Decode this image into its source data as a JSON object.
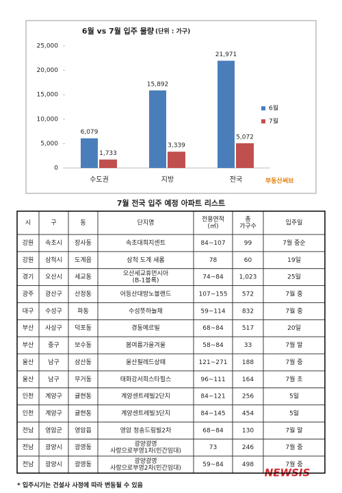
{
  "chart_data": {
    "type": "bar",
    "title": "6월 vs 7월 입주 물량",
    "subtitle": "(단위 : 가구)",
    "categories": [
      "수도권",
      "지방",
      "전국"
    ],
    "series": [
      {
        "name": "6월",
        "color": "#4a7ebb",
        "values": [
          6079,
          15892,
          21971
        ],
        "value_labels": [
          "6,079",
          "15,892",
          "21,971"
        ]
      },
      {
        "name": "7월",
        "color": "#c0504d",
        "values": [
          1733,
          3339,
          5072
        ],
        "value_labels": [
          "1,733",
          "3,339",
          "5,072"
        ]
      }
    ],
    "ylim": [
      0,
      25000
    ],
    "yticks": [
      0,
      {
        "value": 5000,
        "label": "5,000"
      },
      {
        "value": 10000,
        "label": "10,000"
      },
      {
        "value": 15000,
        "label": "15,000"
      },
      {
        "value": 20000,
        "label": "20,000"
      },
      {
        "value": 25000,
        "label": "25,000"
      }
    ],
    "grid": false,
    "legend": "right",
    "logo": "부동산써브"
  },
  "table": {
    "title": "7월 전국 입주 예정 아파트 리스트",
    "header": [
      [
        "시"
      ],
      [
        "구"
      ],
      [
        "동"
      ],
      [
        "단지명"
      ],
      [
        "전용면적",
        "(㎡)"
      ],
      [
        "총",
        "가구수"
      ],
      [
        "입주일"
      ]
    ],
    "rows": [
      [
        [
          "강원"
        ],
        [
          "속초시"
        ],
        [
          "장사동"
        ],
        [
          "속초대희지센트"
        ],
        [
          "84~107"
        ],
        [
          "99"
        ],
        [
          "7월 중순"
        ]
      ],
      [
        [
          "강원"
        ],
        [
          "삼척시"
        ],
        [
          "도계읍"
        ],
        [
          "삼척 도계 새롬"
        ],
        [
          "78"
        ],
        [
          "60"
        ],
        [
          "19일"
        ]
      ],
      [
        [
          "경기"
        ],
        [
          "오산시"
        ],
        [
          "세교동"
        ],
        [
          "오산세교휴먼시아",
          "(B-1블록)"
        ],
        [
          "74~84"
        ],
        [
          "1,023"
        ],
        [
          "25일"
        ]
      ],
      [
        [
          "광주"
        ],
        [
          "광산구"
        ],
        [
          "산정동"
        ],
        [
          "어등산대방노블랜드"
        ],
        [
          "107~155"
        ],
        [
          "572"
        ],
        [
          "7월 중"
        ]
      ],
      [
        [
          "대구"
        ],
        [
          "수성구"
        ],
        [
          "파동"
        ],
        [
          "수성뜻하늘채"
        ],
        [
          "59~114"
        ],
        [
          "832"
        ],
        [
          "7월 중"
        ]
      ],
      [
        [
          "부산"
        ],
        [
          "사상구"
        ],
        [
          "덕포동"
        ],
        [
          "경동메르빌"
        ],
        [
          "68~84"
        ],
        [
          "517"
        ],
        [
          "20일"
        ]
      ],
      [
        [
          "부산"
        ],
        [
          "중구"
        ],
        [
          "보수동"
        ],
        [
          "봄여름가을겨울"
        ],
        [
          "58~84"
        ],
        [
          "33"
        ],
        [
          "7월 말"
        ]
      ],
      [
        [
          "울산"
        ],
        [
          "남구"
        ],
        [
          "삼산동"
        ],
        [
          "울산필레드상떼"
        ],
        [
          "121~271"
        ],
        [
          "188"
        ],
        [
          "7월 중"
        ]
      ],
      [
        [
          "울산"
        ],
        [
          "남구"
        ],
        [
          "무거동"
        ],
        [
          "태화강서희스타힐스"
        ],
        [
          "96~111"
        ],
        [
          "164"
        ],
        [
          "7월 초"
        ]
      ],
      [
        [
          "인천"
        ],
        [
          "계양구"
        ],
        [
          "귤현동"
        ],
        [
          "계양센트레빌2단지"
        ],
        [
          "84~121"
        ],
        [
          "256"
        ],
        [
          "5일"
        ]
      ],
      [
        [
          "인천"
        ],
        [
          "계양구"
        ],
        [
          "귤현동"
        ],
        [
          "계양센트레빌3단지"
        ],
        [
          "84~145"
        ],
        [
          "454"
        ],
        [
          "5일"
        ]
      ],
      [
        [
          "전남"
        ],
        [
          "영암군"
        ],
        [
          "영암읍"
        ],
        [
          "영암 청송드림빌2차"
        ],
        [
          "68~84"
        ],
        [
          "130"
        ],
        [
          "7월 말"
        ]
      ],
      [
        [
          "전남"
        ],
        [
          "광양시"
        ],
        [
          "광영동"
        ],
        [
          "광양광영",
          "사랑으로부영1차(민간임대)"
        ],
        [
          "73"
        ],
        [
          "246"
        ],
        [
          "7월 중"
        ]
      ],
      [
        [
          "전남"
        ],
        [
          "광양시"
        ],
        [
          "광영동"
        ],
        [
          "광양광영",
          "사랑으로부영2차(민간임대)"
        ],
        [
          "59~84"
        ],
        [
          "498"
        ],
        [
          "7월 중"
        ]
      ]
    ],
    "footnote": "* 입주시기는 건설사 사정에 따라 변동될 수 있음"
  },
  "watermark": "NEWSIS"
}
